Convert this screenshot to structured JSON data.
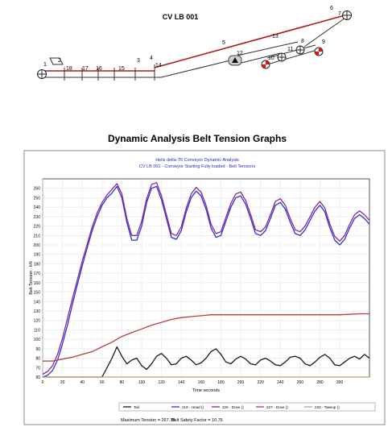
{
  "diagram": {
    "title": "CV LB 001",
    "node_labels": [
      "1",
      "2",
      "18",
      "17",
      "16",
      "15",
      "3",
      "4",
      "14",
      "5",
      "13",
      "12",
      "6",
      "7",
      "8",
      "9",
      "11",
      "10"
    ]
  },
  "section_title": "Dynamic Analysis Belt Tension Graphs",
  "chart_data": {
    "type": "line",
    "title": "Helix delta-T6 Conveyor Dynamic Analysis",
    "subtitle": "CV LB 001 - Conveyor Starting Fully loaded - Belt Tensions",
    "xlabel": "Time seconds",
    "ylabel": "Belt Tension - kN",
    "xlim": [
      0,
      330
    ],
    "ylim": [
      60,
      270
    ],
    "xticks": [
      0,
      20,
      40,
      60,
      80,
      100,
      120,
      140,
      160,
      180,
      200,
      220,
      240,
      260,
      280,
      300
    ],
    "yticks": [
      60,
      70,
      80,
      90,
      100,
      110,
      120,
      130,
      140,
      150,
      160,
      170,
      180,
      190,
      200,
      210,
      220,
      230,
      240,
      250,
      260
    ],
    "grid": true,
    "legend_position": "bottom",
    "series": [
      {
        "name": "Tail",
        "color": "#1a1a1a",
        "x": [
          0,
          55,
          60,
          65,
          70,
          75,
          80,
          85,
          90,
          95,
          100,
          105,
          110,
          115,
          120,
          125,
          130,
          135,
          140,
          145,
          150,
          155,
          160,
          165,
          170,
          175,
          180,
          185,
          190,
          195,
          200,
          205,
          210,
          215,
          220,
          225,
          230,
          235,
          240,
          245,
          250,
          255,
          260,
          265,
          270,
          275,
          280,
          285,
          290,
          295,
          300,
          305,
          310,
          315,
          320,
          325,
          330
        ],
        "y": [
          60,
          60,
          60,
          70,
          80,
          92,
          82,
          74,
          78,
          80,
          72,
          68,
          74,
          82,
          85,
          80,
          73,
          74,
          80,
          82,
          78,
          73,
          75,
          80,
          87,
          90,
          84,
          76,
          74,
          79,
          82,
          79,
          74,
          73,
          78,
          80,
          77,
          73,
          72,
          76,
          81,
          82,
          80,
          74,
          72,
          76,
          81,
          84,
          80,
          73,
          72,
          76,
          80,
          82,
          79,
          84,
          80
        ]
      },
      {
        "name": "216 - Head ()",
        "color": "#2f2fe0",
        "x": [
          0,
          5,
          10,
          15,
          20,
          25,
          30,
          35,
          40,
          45,
          50,
          55,
          60,
          65,
          70,
          75,
          80,
          85,
          90,
          95,
          100,
          105,
          110,
          115,
          120,
          125,
          130,
          135,
          140,
          145,
          150,
          155,
          160,
          165,
          170,
          175,
          180,
          185,
          190,
          195,
          200,
          205,
          210,
          215,
          220,
          225,
          230,
          235,
          240,
          245,
          250,
          255,
          260,
          265,
          270,
          275,
          280,
          285,
          290,
          295,
          300,
          305,
          310,
          315,
          320,
          325,
          330
        ],
        "y": [
          60,
          62,
          67,
          78,
          95,
          115,
          137,
          158,
          178,
          197,
          215,
          230,
          242,
          250,
          255,
          262,
          250,
          224,
          205,
          205,
          220,
          245,
          260,
          262,
          248,
          228,
          208,
          206,
          215,
          235,
          250,
          257,
          252,
          238,
          218,
          208,
          210,
          225,
          240,
          250,
          252,
          243,
          228,
          212,
          210,
          215,
          228,
          242,
          245,
          238,
          224,
          212,
          210,
          216,
          226,
          236,
          242,
          235,
          218,
          205,
          200,
          206,
          218,
          228,
          232,
          228,
          222
        ]
      },
      {
        "name": "226 - Drive ()",
        "color": "#8a2a8a",
        "x": [
          0,
          5,
          10,
          15,
          20,
          25,
          30,
          35,
          40,
          45,
          50,
          55,
          60,
          65,
          70,
          75,
          80,
          85,
          90,
          95,
          100,
          105,
          110,
          115,
          120,
          125,
          130,
          135,
          140,
          145,
          150,
          155,
          160,
          165,
          170,
          175,
          180,
          185,
          190,
          195,
          200,
          205,
          210,
          215,
          220,
          225,
          230,
          235,
          240,
          245,
          250,
          255,
          260,
          265,
          270,
          275,
          280,
          285,
          290,
          295,
          300,
          305,
          310,
          315,
          320,
          325,
          330
        ],
        "y": [
          63,
          66,
          72,
          84,
          101,
          122,
          143,
          163,
          183,
          201,
          219,
          234,
          245,
          253,
          259,
          265,
          254,
          228,
          210,
          210,
          225,
          249,
          264,
          266,
          252,
          232,
          212,
          210,
          219,
          239,
          254,
          261,
          256,
          242,
          222,
          212,
          214,
          229,
          244,
          254,
          256,
          247,
          232,
          216,
          214,
          219,
          232,
          246,
          249,
          242,
          228,
          216,
          214,
          220,
          230,
          240,
          246,
          239,
          222,
          209,
          204,
          210,
          222,
          232,
          236,
          232,
          226
        ]
      },
      {
        "name": "227 - Drive ()",
        "color": "#b24040",
        "x": [
          0,
          10,
          20,
          30,
          40,
          50,
          60,
          70,
          80,
          90,
          100,
          110,
          120,
          130,
          140,
          150,
          160,
          170,
          180,
          190,
          200,
          220,
          240,
          260,
          280,
          300,
          320,
          330
        ],
        "y": [
          77,
          77,
          79,
          81,
          84,
          87,
          92,
          97,
          103,
          107,
          111,
          115,
          118,
          121,
          123,
          124,
          125,
          126,
          126,
          126,
          126,
          126,
          126,
          126,
          126,
          126,
          127,
          127
        ]
      },
      {
        "name": "232 - Takeup ()",
        "color": "#c8a060",
        "x": [
          0,
          330
        ],
        "y": [
          60,
          60
        ]
      }
    ]
  },
  "footer": {
    "max_tension": "Maximum Tension = 267.78",
    "safety_factor": "Belt Safety Factor = 10.76"
  }
}
